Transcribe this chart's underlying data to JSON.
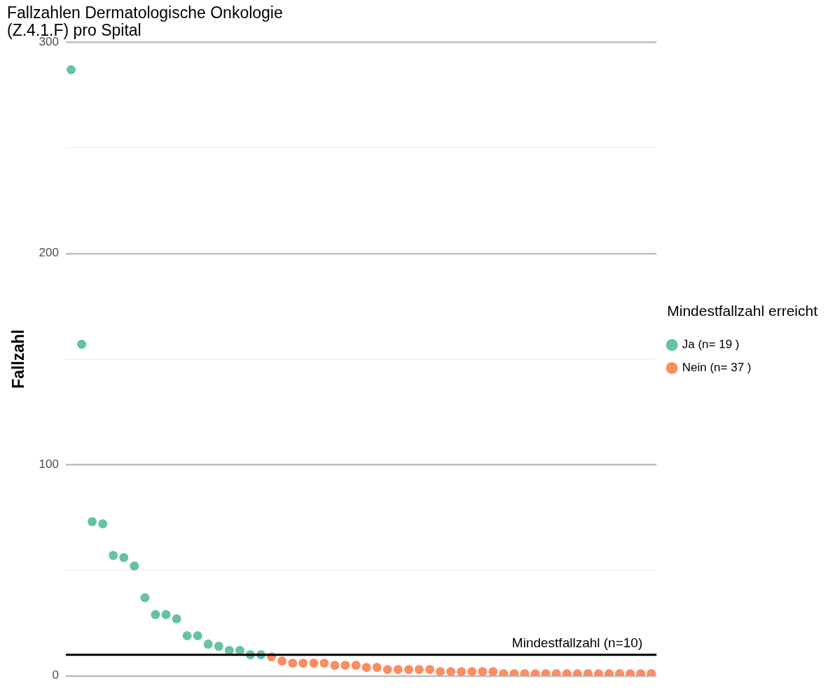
{
  "chart_data": {
    "type": "scatter",
    "title": "Fallzahlen Dermatologische Onkologie\n(Z.4.1.F) pro Spital",
    "ylabel": "Fallzahl",
    "legend_title": "Mindestfallzahl erreicht",
    "categories": [
      null,
      null,
      null,
      null,
      null,
      null,
      null,
      null,
      null,
      null,
      null,
      null,
      null,
      null,
      null,
      null,
      null,
      null,
      null,
      null,
      null,
      null,
      null,
      null,
      null,
      null,
      null,
      null,
      null,
      null,
      null,
      null,
      null,
      null,
      null,
      null,
      null,
      null,
      null,
      null,
      null,
      null,
      null,
      null,
      null,
      null,
      null,
      null,
      null,
      null,
      null,
      null,
      null,
      null,
      null,
      null
    ],
    "series": [
      {
        "name": "Ja (n= 19 )",
        "color": "#66c2a5",
        "values": [
          287,
          157,
          73,
          72,
          57,
          56,
          52,
          37,
          29,
          29,
          27,
          19,
          19,
          15,
          14,
          12,
          12,
          10,
          10,
          null,
          null,
          null,
          null,
          null,
          null,
          null,
          null,
          null,
          null,
          null,
          null,
          null,
          null,
          null,
          null,
          null,
          null,
          null,
          null,
          null,
          null,
          null,
          null,
          null,
          null,
          null,
          null,
          null,
          null,
          null,
          null,
          null,
          null,
          null,
          null,
          null
        ]
      },
      {
        "name": "Nein (n= 37 )",
        "color": "#fc8d62",
        "values": [
          null,
          null,
          null,
          null,
          null,
          null,
          null,
          null,
          null,
          null,
          null,
          null,
          null,
          null,
          null,
          null,
          null,
          null,
          null,
          9,
          7,
          6,
          6,
          6,
          6,
          5,
          5,
          5,
          4,
          4,
          3,
          3,
          3,
          3,
          3,
          2,
          2,
          2,
          2,
          2,
          2,
          1,
          1,
          1,
          1,
          1,
          1,
          1,
          1,
          1,
          1,
          1,
          1,
          1,
          1,
          1
        ]
      }
    ],
    "ylim": [
      0,
      300
    ],
    "yticks": [
      0,
      {
        "value": 50,
        "label": null
      },
      100,
      {
        "value": 150,
        "label": null
      },
      200,
      {
        "value": 250,
        "label": null
      },
      300
    ],
    "grid": "y",
    "legend": "right",
    "marker": "circle",
    "tick_labels": "y",
    "ref_lines": [
      {
        "axis": "y",
        "value": 10,
        "label": "Mindestfallzahl (n=10)",
        "color": "#000000"
      }
    ]
  }
}
